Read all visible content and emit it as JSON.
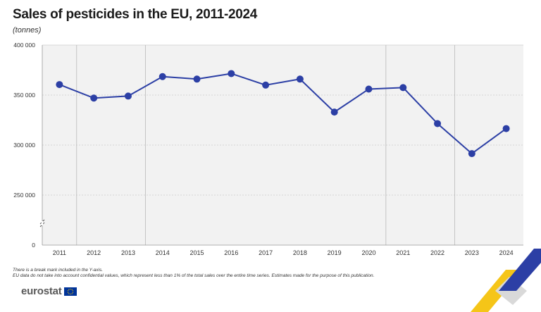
{
  "title": "Sales of pesticides in the EU, 2011-2024",
  "subtitle": "(tonnes)",
  "notes": [
    "There is a break mark included in the Y-axis.",
    "EU data do not take into account confidential values, which represent less than 1% of the total sales over the entire time series. Estimates made for the purpose of this publication."
  ],
  "logo_text": "eurostat",
  "colors": {
    "line": "#2c3fa5",
    "grid": "#cccccc",
    "plot_bg": "#f2f2f2",
    "accent_yellow": "#f5c518",
    "accent_blue": "#2c3fa5"
  },
  "chart_data": {
    "type": "line",
    "categories": [
      "2011",
      "2012",
      "2013",
      "2014",
      "2015",
      "2016",
      "2017",
      "2018",
      "2019",
      "2020",
      "2021",
      "2022",
      "2023",
      "2024"
    ],
    "series": [
      {
        "values": [
          360500,
          347000,
          349000,
          368500,
          366000,
          371500,
          360000,
          366000,
          333000,
          356000,
          357500,
          321500,
          291500,
          316500
        ]
      }
    ],
    "y_ticks": [
      {
        "label": "400 000",
        "value": 400000
      },
      {
        "label": "350 000",
        "value": 350000
      },
      {
        "label": "300 000",
        "value": 300000
      },
      {
        "label": "250 000",
        "value": 250000
      },
      {
        "label": "0",
        "value": 0
      }
    ],
    "ylim": [
      0,
      400000
    ],
    "axis_break": true,
    "grid": true,
    "vertical_grid_years": [
      "2012",
      "2014",
      "2021",
      "2023"
    ]
  }
}
